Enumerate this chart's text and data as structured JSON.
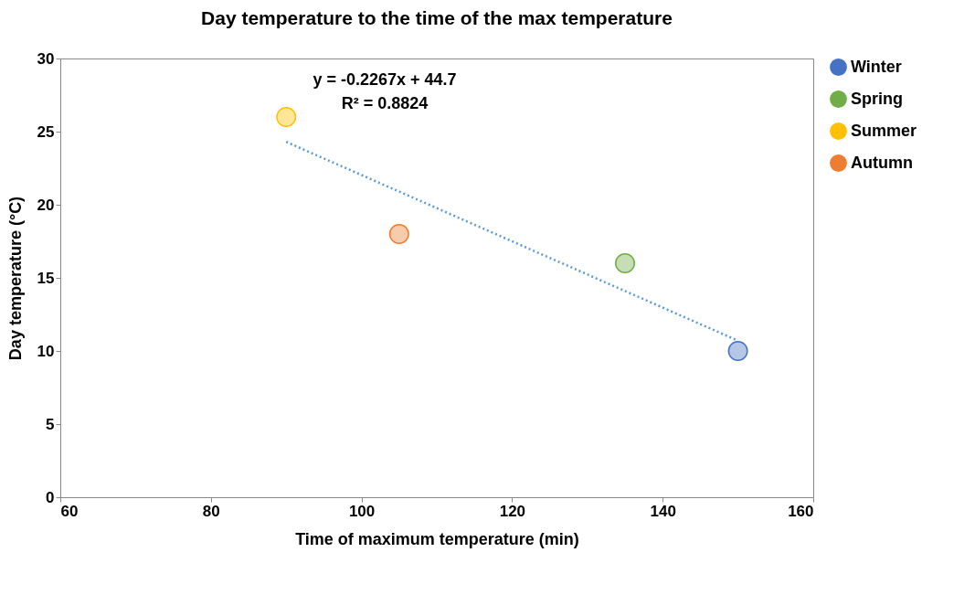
{
  "chart_data": {
    "type": "scatter",
    "title": "Day temperature to the time of the max temperature",
    "xlabel": "Time of maximum temperature (min)",
    "ylabel": "Day temperature (°C)",
    "xlim": [
      60,
      160
    ],
    "xticks": [
      60,
      80,
      100,
      120,
      140,
      160
    ],
    "ylim": [
      0,
      30
    ],
    "yticks": [
      0,
      5,
      10,
      15,
      20,
      25,
      30
    ],
    "legend": "right",
    "marker": "circle",
    "annotations": [
      "y = -0.2267x + 44.7",
      "R² = 0.8824"
    ],
    "series": [
      {
        "name": "Winter",
        "color": "#4472c4",
        "x": [
          150
        ],
        "values": [
          10
        ]
      },
      {
        "name": "Spring",
        "color": "#70ad47",
        "x": [
          135
        ],
        "values": [
          16
        ]
      },
      {
        "name": "Summer",
        "color": "#ffc000",
        "x": [
          90
        ],
        "values": [
          26
        ]
      },
      {
        "name": "Autumn",
        "color": "#ed7d31",
        "x": [
          105
        ],
        "values": [
          18
        ]
      },
      {
        "type": "line",
        "marker": "none",
        "color": "#5b9bd5",
        "line_style": "dotted",
        "x": [
          90,
          150
        ],
        "values": [
          24.3,
          10.7
        ]
      }
    ]
  }
}
